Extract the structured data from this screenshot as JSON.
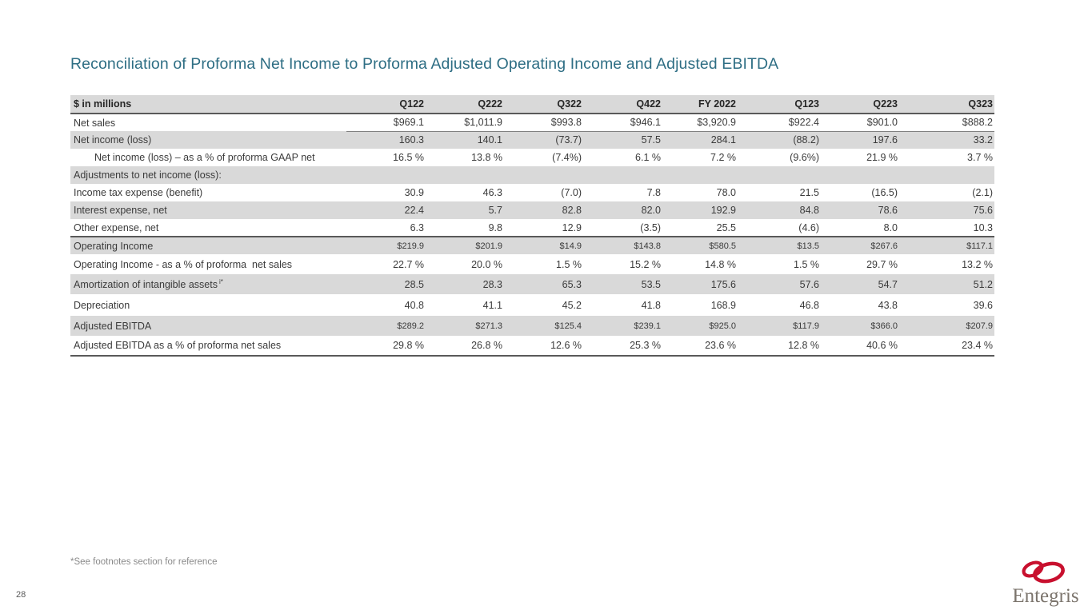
{
  "slide": {
    "title": "Reconciliation of Proforma Net Income to Proforma Adjusted Operating Income and Adjusted EBITDA",
    "footnote": "*See footnotes section for reference",
    "page_number": "28",
    "logo_text": "Entegris"
  },
  "colors": {
    "title": "#2E6E84",
    "row_stripe": "#D9D9D9",
    "text": "#3B3B3B",
    "footnote": "#8A8A8A",
    "logo_red": "#C8102E",
    "logo_gray": "#7B746C"
  },
  "table": {
    "header": [
      "$ in millions",
      "Q122",
      "Q222",
      "Q322",
      "Q422",
      "FY 2022",
      "Q123",
      "Q223",
      "Q323"
    ],
    "rows": [
      {
        "label": "Net sales",
        "values": [
          "$969.1",
          "$1,011.9",
          "$993.8",
          "$946.1",
          "$3,920.9",
          "$922.4",
          "$901.0",
          "$888.2"
        ],
        "shaded": false,
        "underline_values": true
      },
      {
        "label": "Net income (loss)",
        "values": [
          "160.3",
          "140.1",
          "(73.7)",
          "57.5",
          "284.1",
          "(88.2)",
          "197.6",
          "33.2"
        ],
        "shaded": true
      },
      {
        "label": "Net income (loss) – as a % of proforma GAAP net",
        "values": [
          "16.5 %",
          "13.8 %",
          "(7.4%)",
          "6.1 %",
          "7.2 %",
          "(9.6%)",
          "21.9 %",
          "3.7 %"
        ],
        "indent": true
      },
      {
        "label": "Adjustments to net income (loss):",
        "values": [
          "",
          "",
          "",
          "",
          "",
          "",
          "",
          ""
        ],
        "shaded": true
      },
      {
        "label": "Income tax expense (benefit)",
        "values": [
          "30.9",
          "46.3",
          "(7.0)",
          "7.8",
          "78.0",
          "21.5",
          "(16.5)",
          "(2.1)"
        ]
      },
      {
        "label": "Interest expense, net",
        "values": [
          "22.4",
          "5.7",
          "82.8",
          "82.0",
          "192.9",
          "84.8",
          "78.6",
          "75.6"
        ],
        "shaded": true
      },
      {
        "label": "Other expense, net",
        "values": [
          "6.3",
          "9.8",
          "12.9",
          "(3.5)",
          "25.5",
          "(4.6)",
          "8.0",
          "10.3"
        ]
      },
      {
        "label": "Operating Income",
        "values": [
          "$219.9",
          "$201.9",
          "$14.9",
          "$143.8",
          "$580.5",
          "$13.5",
          "$267.6",
          "$117.1"
        ],
        "shaded": true,
        "top_border": true,
        "small": true
      },
      {
        "label": "Operating Income - as a % of proforma  net sales",
        "values": [
          "22.7 %",
          "20.0 %",
          "1.5 %",
          "15.2 %",
          "14.8 %",
          "1.5 %",
          "29.7 %",
          "13.2 %"
        ]
      },
      {
        "label": "Amortization of intangible assets",
        "sup": "i*",
        "values": [
          "28.5",
          "28.3",
          "65.3",
          "53.5",
          "175.6",
          "57.6",
          "54.7",
          "51.2"
        ],
        "shaded": true
      },
      {
        "label": "Depreciation",
        "values": [
          "40.8",
          "41.1",
          "45.2",
          "41.8",
          "168.9",
          "46.8",
          "43.8",
          "39.6"
        ]
      },
      {
        "label": "Adjusted EBITDA",
        "values": [
          "$289.2",
          "$271.3",
          "$125.4",
          "$239.1",
          "$925.0",
          "$117.9",
          "$366.0",
          "$207.9"
        ],
        "shaded": true,
        "small": true
      },
      {
        "label": "Adjusted EBITDA as a % of proforma net sales",
        "values": [
          "29.8 %",
          "26.8 %",
          "12.6 %",
          "25.3 %",
          "23.6 %",
          "12.8 %",
          "40.6 %",
          "23.4 %"
        ],
        "bottom_border": true
      }
    ]
  }
}
